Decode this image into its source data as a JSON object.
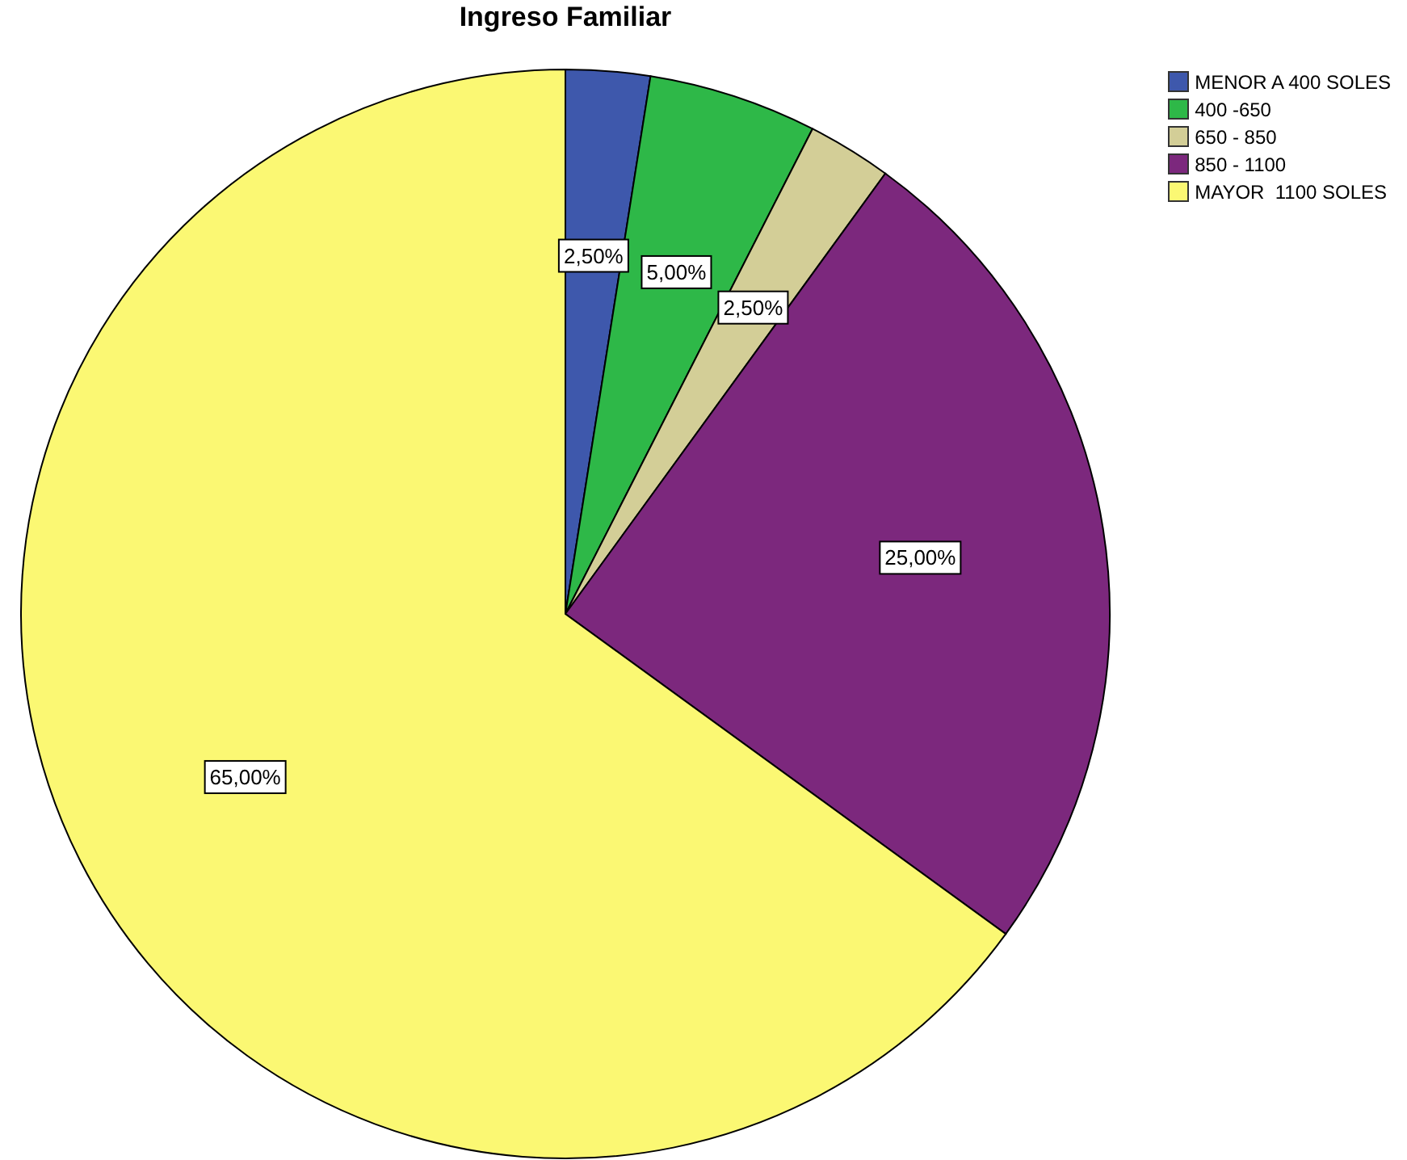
{
  "chart_data": {
    "type": "pie",
    "title": "Ingreso Familiar",
    "categories": [
      "MENOR A 400 SOLES",
      "400 -650",
      "650 - 850",
      "850 - 1100",
      "MAYOR  1100 SOLES"
    ],
    "values": [
      2.5,
      5,
      2.5,
      25,
      65
    ],
    "colors": [
      "#3e58ac",
      "#2eb848",
      "#d3ce97",
      "#7c287d",
      "#fbf873"
    ],
    "value_labels": [
      "2,50%",
      "5,00%",
      "2,50%",
      "25,00%",
      "65,00%"
    ],
    "legend": "top right"
  }
}
